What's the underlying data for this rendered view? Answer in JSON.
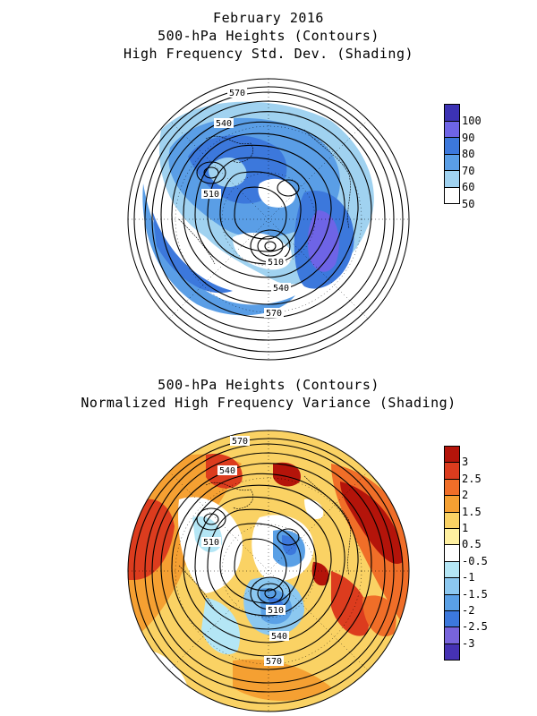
{
  "figure1": {
    "title_lines": [
      "February 2016",
      "500-hPa Heights (Contours)",
      "High Frequency Std. Dev. (Shading)"
    ],
    "contour_labels": [
      "570",
      "540",
      "510",
      "510",
      "540",
      "570"
    ],
    "legend": {
      "labels": [
        "100",
        "90",
        "80",
        "70",
        "60",
        "50"
      ],
      "colors": [
        "#3c32b4",
        "#6e64e6",
        "#3c78dc",
        "#5a9ee6",
        "#a0d2f0",
        "#ffffff"
      ]
    }
  },
  "figure2": {
    "title_lines": [
      "500-hPa Heights (Contours)",
      "Normalized High Frequency Variance (Shading)"
    ],
    "contour_labels": [
      "570",
      "540",
      "510",
      "510",
      "540",
      "570"
    ],
    "legend": {
      "labels": [
        "3",
        "2.5",
        "2",
        "1.5",
        "1",
        "0.5",
        "-0.5",
        "-1",
        "-1.5",
        "-2",
        "-2.5",
        "-3"
      ],
      "colors": [
        "#b4140a",
        "#dc3c1e",
        "#f06e28",
        "#f5a032",
        "#fad264",
        "#fff0a0",
        "#ffffff",
        "#b4e6f5",
        "#8cc8f0",
        "#5aa0e6",
        "#3c78dc",
        "#7864dc",
        "#4632b4"
      ]
    }
  }
}
